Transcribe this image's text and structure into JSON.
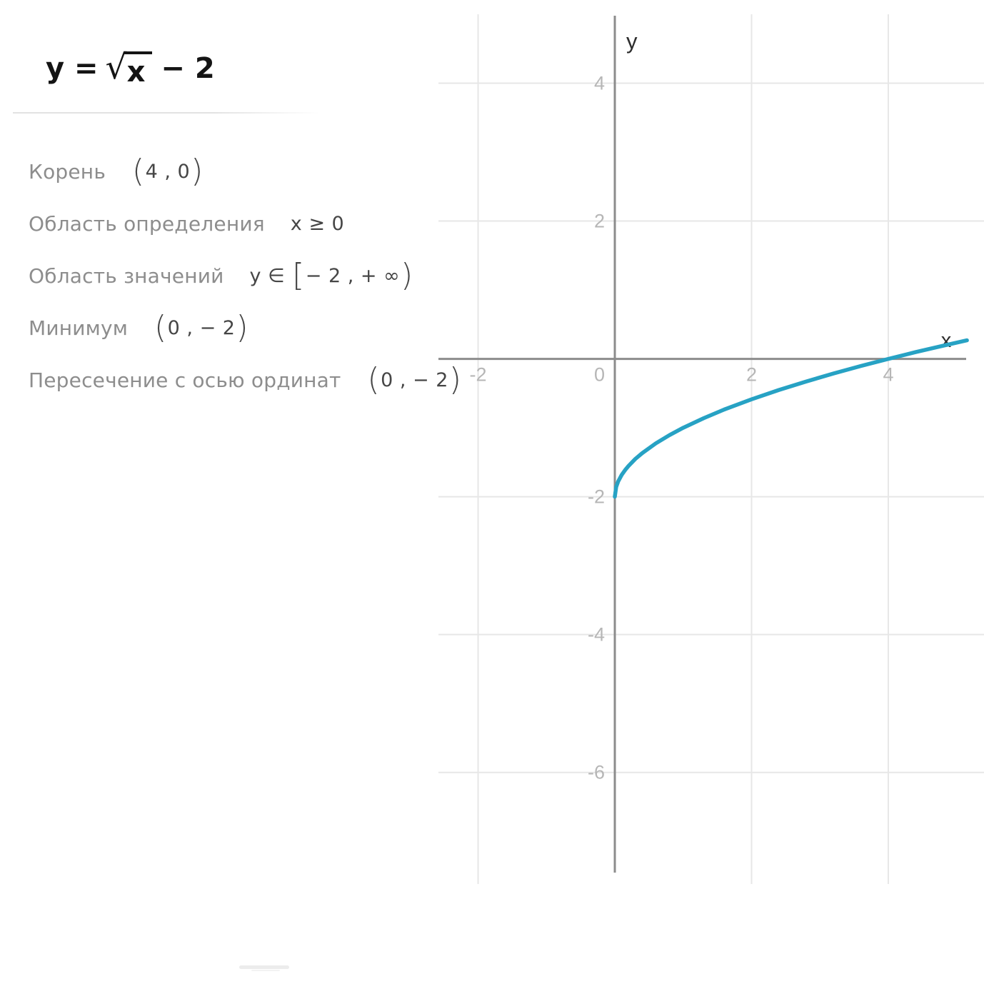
{
  "formula": {
    "lhs": "y =",
    "radical_symbol": "√",
    "radicand": "x",
    "suffix": "− 2"
  },
  "properties": {
    "rows": [
      {
        "label": "Корень",
        "value": "(4 , 0)"
      },
      {
        "label": "Область определения",
        "value": "x ≥ 0"
      },
      {
        "label": "Область значений",
        "value": "y ∈ [− 2 , + ∞)"
      },
      {
        "label": "Минимум",
        "value": "(0 , − 2)"
      },
      {
        "label": "Пересечение с осью ординат",
        "value": "(0 , − 2)"
      }
    ]
  },
  "chart_data": {
    "type": "line",
    "title": "y = √x − 2",
    "function": "y = sqrt(x) − 2",
    "xlabel": "x",
    "ylabel": "y",
    "xlim": [
      -2.58,
      5.4
    ],
    "ylim": [
      -7.64,
      5.0
    ],
    "x_ticks": [
      -2,
      0,
      2,
      4
    ],
    "y_ticks": [
      4,
      2,
      -2,
      -4,
      -6
    ],
    "grid": true,
    "legend": false,
    "key_points": {
      "root": [
        4,
        0
      ],
      "minimum": [
        0,
        -2
      ],
      "y_intercept": [
        0,
        -2
      ],
      "domain": "x ≥ 0",
      "range": "y ∈ [−2, +∞)"
    },
    "series": [
      {
        "name": "y = √x − 2",
        "color": "#27A2C4",
        "points": [
          [
            0,
            -2
          ],
          [
            0.02,
            -1.859
          ],
          [
            0.05,
            -1.776
          ],
          [
            0.1,
            -1.684
          ],
          [
            0.15,
            -1.613
          ],
          [
            0.2,
            -1.553
          ],
          [
            0.3,
            -1.452
          ],
          [
            0.4,
            -1.368
          ],
          [
            0.6,
            -1.225
          ],
          [
            0.8,
            -1.106
          ],
          [
            1,
            -1
          ],
          [
            1.3,
            -0.86
          ],
          [
            1.6,
            -0.735
          ],
          [
            2,
            -0.586
          ],
          [
            2.4,
            -0.451
          ],
          [
            2.8,
            -0.327
          ],
          [
            3.2,
            -0.211
          ],
          [
            3.6,
            -0.103
          ],
          [
            4,
            0
          ],
          [
            4.4,
            0.098
          ],
          [
            4.8,
            0.191
          ],
          [
            5.15,
            0.269
          ]
        ]
      }
    ],
    "style": {
      "grid_color": "#e7e7e7",
      "axis_color": "#8c8c8c",
      "tick_color": "#b6b6b6",
      "axis_label_color": "#2d2d2d"
    }
  }
}
